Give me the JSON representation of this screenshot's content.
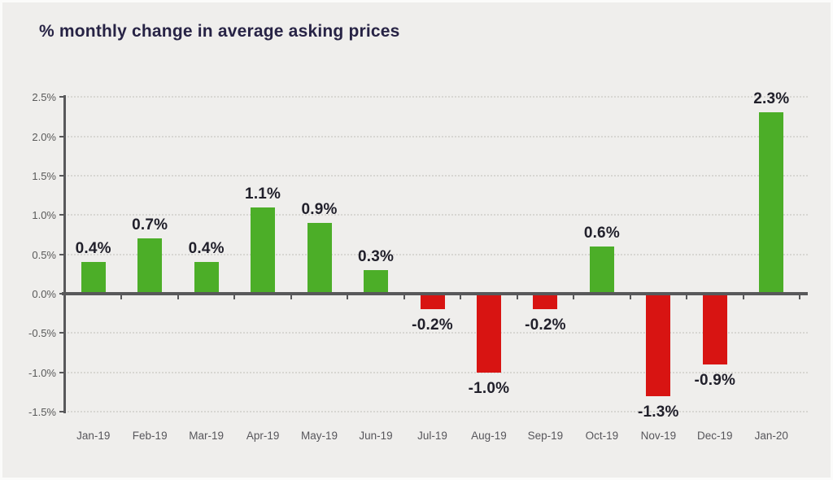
{
  "chart_data": {
    "type": "bar",
    "title": "% monthly change in average asking prices",
    "categories": [
      "Jan-19",
      "Feb-19",
      "Mar-19",
      "Apr-19",
      "May-19",
      "Jun-19",
      "Jul-19",
      "Aug-19",
      "Sep-19",
      "Oct-19",
      "Nov-19",
      "Dec-19",
      "Jan-20"
    ],
    "values": [
      0.4,
      0.7,
      0.4,
      1.1,
      0.9,
      0.3,
      -0.2,
      -1.0,
      -0.2,
      0.6,
      -1.3,
      -0.9,
      2.3
    ],
    "value_labels": [
      "0.4%",
      "0.7%",
      "0.4%",
      "1.1%",
      "0.9%",
      "0.3%",
      "-0.2%",
      "-1.0%",
      "-0.2%",
      "0.6%",
      "-1.3%",
      "-0.9%",
      "2.3%"
    ],
    "y_ticks": [
      2.5,
      2.0,
      1.5,
      1.0,
      0.5,
      0.0,
      -0.5,
      -1.0,
      -1.5
    ],
    "y_tick_labels": [
      "2.5%",
      "2.0%",
      "1.5%",
      "1.0%",
      "0.5%",
      "0.0%",
      "-0.5%",
      "-1.0%",
      "-1.5%"
    ],
    "ylim": [
      -1.5,
      2.5
    ],
    "xlabel": "",
    "ylabel": "",
    "legend_position": "none",
    "grid": "horizontal-dotted",
    "colors": {
      "positive_bar": "#4cae28",
      "negative_bar": "#d81412",
      "axis": "#58585a",
      "gridline": "#d7d6d2",
      "tick_label": "#595959",
      "data_label": "#21202b",
      "title": "#272345",
      "background": "#efeeec"
    }
  }
}
